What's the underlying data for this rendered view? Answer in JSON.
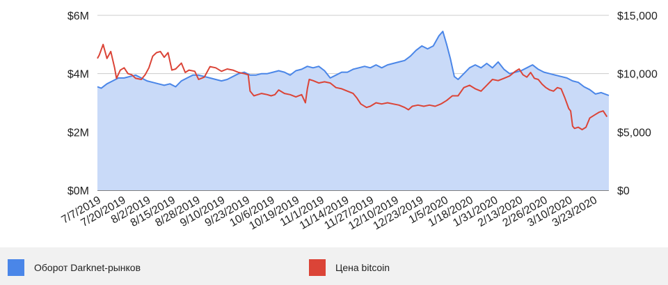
{
  "chart_data": {
    "type": "area",
    "title": "",
    "xlabel": "",
    "ylabel": "",
    "y2label": "",
    "x_range": [
      "2019-07-07",
      "2020-03-31"
    ],
    "ylim": [
      0,
      6000000
    ],
    "y2lim": [
      0,
      15000
    ],
    "y_ticks": [
      "$0M",
      "$2M",
      "$4M",
      "$6M"
    ],
    "y2_ticks": [
      "$0",
      "$5,000",
      "$10,000",
      "$15,000"
    ],
    "x_tick_labels": [
      "7/7/2019",
      "7/20/2019",
      "8/2/2019",
      "8/15/2019",
      "8/28/2019",
      "9/10/2019",
      "9/23/2019",
      "10/6/2019",
      "10/19/2019",
      "11/1/2019",
      "11/14/2019",
      "11/27/2019",
      "12/10/2019",
      "12/23/2019",
      "1/5/2020",
      "1/18/2020",
      "1/31/2020",
      "2/13/2020",
      "2/26/2020",
      "3/10/2020",
      "3/23/2020"
    ],
    "grid": true,
    "legend_position": "bottom",
    "series": [
      {
        "name": "Оборот Darknet-рынков",
        "axis": "left",
        "chart": "area",
        "color": "#4a86e8",
        "fill": "#c9daf8",
        "points": [
          [
            "2019-07-07",
            3550000
          ],
          [
            "2019-07-09",
            3500000
          ],
          [
            "2019-07-12",
            3650000
          ],
          [
            "2019-07-15",
            3750000
          ],
          [
            "2019-07-18",
            3850000
          ],
          [
            "2019-07-21",
            3850000
          ],
          [
            "2019-07-24",
            3900000
          ],
          [
            "2019-07-27",
            3950000
          ],
          [
            "2019-07-30",
            3850000
          ],
          [
            "2019-08-02",
            3750000
          ],
          [
            "2019-08-05",
            3700000
          ],
          [
            "2019-08-08",
            3650000
          ],
          [
            "2019-08-11",
            3600000
          ],
          [
            "2019-08-14",
            3650000
          ],
          [
            "2019-08-17",
            3550000
          ],
          [
            "2019-08-20",
            3750000
          ],
          [
            "2019-08-23",
            3850000
          ],
          [
            "2019-08-26",
            3950000
          ],
          [
            "2019-08-29",
            3950000
          ],
          [
            "2019-09-01",
            3900000
          ],
          [
            "2019-09-04",
            3850000
          ],
          [
            "2019-09-07",
            3800000
          ],
          [
            "2019-09-10",
            3750000
          ],
          [
            "2019-09-13",
            3800000
          ],
          [
            "2019-09-16",
            3900000
          ],
          [
            "2019-09-19",
            4000000
          ],
          [
            "2019-09-22",
            4050000
          ],
          [
            "2019-09-25",
            3950000
          ],
          [
            "2019-09-28",
            3950000
          ],
          [
            "2019-10-01",
            4000000
          ],
          [
            "2019-10-04",
            4000000
          ],
          [
            "2019-10-07",
            4050000
          ],
          [
            "2019-10-10",
            4100000
          ],
          [
            "2019-10-13",
            4050000
          ],
          [
            "2019-10-16",
            3950000
          ],
          [
            "2019-10-19",
            4100000
          ],
          [
            "2019-10-22",
            4150000
          ],
          [
            "2019-10-25",
            4250000
          ],
          [
            "2019-10-28",
            4200000
          ],
          [
            "2019-10-31",
            4250000
          ],
          [
            "2019-11-03",
            4100000
          ],
          [
            "2019-11-06",
            3850000
          ],
          [
            "2019-11-09",
            3950000
          ],
          [
            "2019-11-12",
            4050000
          ],
          [
            "2019-11-15",
            4050000
          ],
          [
            "2019-11-18",
            4150000
          ],
          [
            "2019-11-21",
            4200000
          ],
          [
            "2019-11-24",
            4250000
          ],
          [
            "2019-11-27",
            4200000
          ],
          [
            "2019-11-30",
            4300000
          ],
          [
            "2019-12-03",
            4200000
          ],
          [
            "2019-12-06",
            4300000
          ],
          [
            "2019-12-09",
            4350000
          ],
          [
            "2019-12-12",
            4400000
          ],
          [
            "2019-12-15",
            4450000
          ],
          [
            "2019-12-18",
            4600000
          ],
          [
            "2019-12-21",
            4800000
          ],
          [
            "2019-12-24",
            4950000
          ],
          [
            "2019-12-27",
            4850000
          ],
          [
            "2019-12-30",
            4950000
          ],
          [
            "2020-01-02",
            5300000
          ],
          [
            "2020-01-04",
            5450000
          ],
          [
            "2020-01-06",
            5000000
          ],
          [
            "2020-01-08",
            4500000
          ],
          [
            "2020-01-10",
            3900000
          ],
          [
            "2020-01-12",
            3800000
          ],
          [
            "2020-01-15",
            4000000
          ],
          [
            "2020-01-18",
            4200000
          ],
          [
            "2020-01-21",
            4300000
          ],
          [
            "2020-01-24",
            4200000
          ],
          [
            "2020-01-27",
            4350000
          ],
          [
            "2020-01-30",
            4200000
          ],
          [
            "2020-02-02",
            4400000
          ],
          [
            "2020-02-05",
            4150000
          ],
          [
            "2020-02-08",
            4000000
          ],
          [
            "2020-02-11",
            4050000
          ],
          [
            "2020-02-14",
            4100000
          ],
          [
            "2020-02-17",
            4200000
          ],
          [
            "2020-02-20",
            4300000
          ],
          [
            "2020-02-23",
            4150000
          ],
          [
            "2020-02-26",
            4050000
          ],
          [
            "2020-02-29",
            4000000
          ],
          [
            "2020-03-03",
            3950000
          ],
          [
            "2020-03-06",
            3900000
          ],
          [
            "2020-03-09",
            3850000
          ],
          [
            "2020-03-12",
            3750000
          ],
          [
            "2020-03-15",
            3700000
          ],
          [
            "2020-03-18",
            3550000
          ],
          [
            "2020-03-21",
            3450000
          ],
          [
            "2020-03-24",
            3300000
          ],
          [
            "2020-03-27",
            3350000
          ],
          [
            "2020-03-31",
            3250000
          ]
        ]
      },
      {
        "name": "Цена bitcoin",
        "axis": "right",
        "chart": "line",
        "color": "#db4437",
        "points": [
          [
            "2019-07-07",
            11300
          ],
          [
            "2019-07-08",
            11600
          ],
          [
            "2019-07-10",
            12500
          ],
          [
            "2019-07-12",
            11300
          ],
          [
            "2019-07-14",
            11900
          ],
          [
            "2019-07-16",
            10500
          ],
          [
            "2019-07-17",
            9600
          ],
          [
            "2019-07-19",
            10300
          ],
          [
            "2019-07-21",
            10500
          ],
          [
            "2019-07-23",
            10000
          ],
          [
            "2019-07-25",
            9900
          ],
          [
            "2019-07-27",
            9600
          ],
          [
            "2019-07-30",
            9500
          ],
          [
            "2019-08-01",
            9900
          ],
          [
            "2019-08-03",
            10500
          ],
          [
            "2019-08-05",
            11500
          ],
          [
            "2019-08-07",
            11800
          ],
          [
            "2019-08-09",
            11900
          ],
          [
            "2019-08-11",
            11400
          ],
          [
            "2019-08-13",
            11800
          ],
          [
            "2019-08-15",
            10300
          ],
          [
            "2019-08-17",
            10400
          ],
          [
            "2019-08-20",
            10900
          ],
          [
            "2019-08-22",
            10100
          ],
          [
            "2019-08-24",
            10300
          ],
          [
            "2019-08-27",
            10200
          ],
          [
            "2019-08-29",
            9500
          ],
          [
            "2019-09-01",
            9700
          ],
          [
            "2019-09-04",
            10600
          ],
          [
            "2019-09-07",
            10500
          ],
          [
            "2019-09-10",
            10200
          ],
          [
            "2019-09-13",
            10400
          ],
          [
            "2019-09-16",
            10300
          ],
          [
            "2019-09-19",
            10100
          ],
          [
            "2019-09-22",
            10000
          ],
          [
            "2019-09-24",
            9900
          ],
          [
            "2019-09-25",
            8500
          ],
          [
            "2019-09-27",
            8100
          ],
          [
            "2019-09-29",
            8200
          ],
          [
            "2019-10-01",
            8300
          ],
          [
            "2019-10-04",
            8200
          ],
          [
            "2019-10-06",
            8100
          ],
          [
            "2019-10-08",
            8200
          ],
          [
            "2019-10-10",
            8600
          ],
          [
            "2019-10-13",
            8300
          ],
          [
            "2019-10-16",
            8200
          ],
          [
            "2019-10-19",
            8000
          ],
          [
            "2019-10-22",
            8200
          ],
          [
            "2019-10-24",
            7500
          ],
          [
            "2019-10-25",
            8700
          ],
          [
            "2019-10-26",
            9500
          ],
          [
            "2019-10-28",
            9400
          ],
          [
            "2019-10-31",
            9200
          ],
          [
            "2019-11-03",
            9300
          ],
          [
            "2019-11-06",
            9200
          ],
          [
            "2019-11-09",
            8800
          ],
          [
            "2019-11-12",
            8700
          ],
          [
            "2019-11-15",
            8500
          ],
          [
            "2019-11-18",
            8300
          ],
          [
            "2019-11-20",
            7900
          ],
          [
            "2019-11-22",
            7400
          ],
          [
            "2019-11-25",
            7100
          ],
          [
            "2019-11-27",
            7200
          ],
          [
            "2019-11-30",
            7500
          ],
          [
            "2019-12-03",
            7400
          ],
          [
            "2019-12-06",
            7500
          ],
          [
            "2019-12-09",
            7400
          ],
          [
            "2019-12-12",
            7300
          ],
          [
            "2019-12-15",
            7100
          ],
          [
            "2019-12-17",
            6900
          ],
          [
            "2019-12-19",
            7200
          ],
          [
            "2019-12-22",
            7300
          ],
          [
            "2019-12-25",
            7200
          ],
          [
            "2019-12-28",
            7300
          ],
          [
            "2019-12-31",
            7200
          ],
          [
            "2020-01-03",
            7400
          ],
          [
            "2020-01-06",
            7700
          ],
          [
            "2020-01-09",
            8100
          ],
          [
            "2020-01-12",
            8100
          ],
          [
            "2020-01-15",
            8800
          ],
          [
            "2020-01-18",
            9000
          ],
          [
            "2020-01-21",
            8700
          ],
          [
            "2020-01-24",
            8500
          ],
          [
            "2020-01-27",
            9000
          ],
          [
            "2020-01-30",
            9500
          ],
          [
            "2020-02-02",
            9400
          ],
          [
            "2020-02-05",
            9600
          ],
          [
            "2020-02-08",
            9800
          ],
          [
            "2020-02-11",
            10200
          ],
          [
            "2020-02-13",
            10400
          ],
          [
            "2020-02-15",
            9900
          ],
          [
            "2020-02-17",
            9700
          ],
          [
            "2020-02-19",
            10100
          ],
          [
            "2020-02-21",
            9600
          ],
          [
            "2020-02-23",
            9500
          ],
          [
            "2020-02-25",
            9100
          ],
          [
            "2020-02-27",
            8800
          ],
          [
            "2020-02-29",
            8600
          ],
          [
            "2020-03-02",
            8500
          ],
          [
            "2020-03-04",
            8800
          ],
          [
            "2020-03-06",
            8700
          ],
          [
            "2020-03-08",
            7900
          ],
          [
            "2020-03-10",
            7000
          ],
          [
            "2020-03-11",
            6800
          ],
          [
            "2020-03-12",
            5500
          ],
          [
            "2020-03-13",
            5300
          ],
          [
            "2020-03-15",
            5400
          ],
          [
            "2020-03-17",
            5200
          ],
          [
            "2020-03-19",
            5400
          ],
          [
            "2020-03-21",
            6200
          ],
          [
            "2020-03-24",
            6500
          ],
          [
            "2020-03-26",
            6700
          ],
          [
            "2020-03-28",
            6800
          ],
          [
            "2020-03-30",
            6300
          ]
        ]
      }
    ]
  },
  "legend": [
    {
      "label": "Оборот Darknet-рынков",
      "color": "#4a86e8"
    },
    {
      "label": "Цена bitcoin",
      "color": "#db4437"
    }
  ]
}
